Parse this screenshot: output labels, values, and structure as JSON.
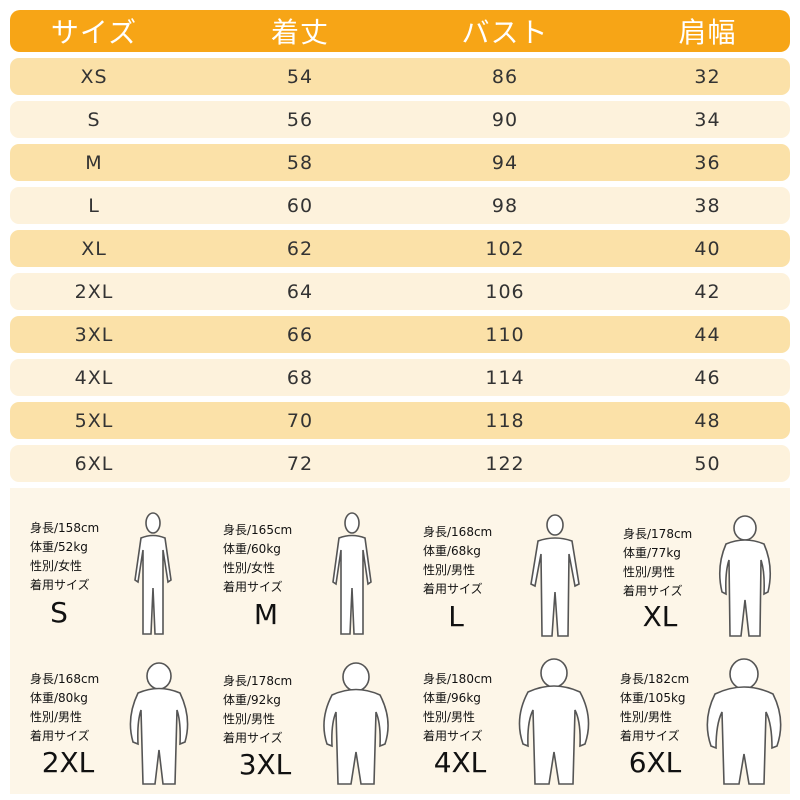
{
  "table": {
    "headers": [
      "サイズ",
      "着丈",
      "バスト",
      "肩幅"
    ],
    "rows": [
      [
        "XS",
        "54",
        "86",
        "32"
      ],
      [
        "S",
        "56",
        "90",
        "34"
      ],
      [
        "M",
        "58",
        "94",
        "36"
      ],
      [
        "L",
        "60",
        "98",
        "38"
      ],
      [
        "XL",
        "62",
        "102",
        "40"
      ],
      [
        "2XL",
        "64",
        "106",
        "42"
      ],
      [
        "3XL",
        "66",
        "110",
        "44"
      ],
      [
        "4XL",
        "68",
        "114",
        "46"
      ],
      [
        "5XL",
        "70",
        "118",
        "48"
      ],
      [
        "6XL",
        "72",
        "122",
        "50"
      ]
    ]
  },
  "models": [
    {
      "height": "身長/158cm",
      "weight": "体重/52kg",
      "gender": "性別/女性",
      "label": "着用サイズ",
      "size": "S"
    },
    {
      "height": "身長/165cm",
      "weight": "体重/60kg",
      "gender": "性別/女性",
      "label": "着用サイズ",
      "size": "M"
    },
    {
      "height": "身長/168cm",
      "weight": "体重/68kg",
      "gender": "性別/男性",
      "label": "着用サイズ",
      "size": "L"
    },
    {
      "height": "身長/178cm",
      "weight": "体重/77kg",
      "gender": "性別/男性",
      "label": "着用サイズ",
      "size": "XL"
    },
    {
      "height": "身長/168cm",
      "weight": "体重/80kg",
      "gender": "性別/男性",
      "label": "着用サイズ",
      "size": "2XL"
    },
    {
      "height": "身長/178cm",
      "weight": "体重/92kg",
      "gender": "性別/男性",
      "label": "着用サイズ",
      "size": "3XL"
    },
    {
      "height": "身長/180cm",
      "weight": "体重/96kg",
      "gender": "性別/男性",
      "label": "着用サイズ",
      "size": "4XL"
    },
    {
      "height": "身長/182cm",
      "weight": "体重/105kg",
      "gender": "性別/男性",
      "label": "着用サイズ",
      "size": "6XL"
    }
  ],
  "colors": {
    "header": "#f7a516",
    "row_dark": "#fbe1a8",
    "row_light": "#fdf2dc",
    "panel": "#fdf6e8"
  }
}
